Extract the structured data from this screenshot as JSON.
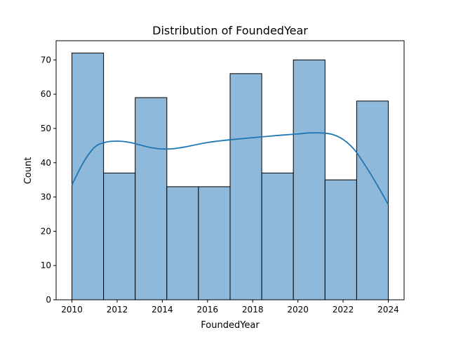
{
  "chart_data": {
    "type": "bar",
    "title": "Distribution of FoundedYear",
    "xlabel": "FoundedYear",
    "ylabel": "Count",
    "xlim": [
      2009.3,
      2024.7
    ],
    "ylim": [
      0,
      75.6
    ],
    "xticks": [
      2010,
      2012,
      2014,
      2016,
      2018,
      2020,
      2022,
      2024
    ],
    "yticks": [
      0,
      10,
      20,
      30,
      40,
      50,
      60,
      70
    ],
    "bins": [
      {
        "x0": 2010.0,
        "x1": 2011.4,
        "count": 72
      },
      {
        "x0": 2011.4,
        "x1": 2012.8,
        "count": 37
      },
      {
        "x0": 2012.8,
        "x1": 2014.2,
        "count": 59
      },
      {
        "x0": 2014.2,
        "x1": 2015.6,
        "count": 33
      },
      {
        "x0": 2015.6,
        "x1": 2017.0,
        "count": 33
      },
      {
        "x0": 2017.0,
        "x1": 2018.4,
        "count": 66
      },
      {
        "x0": 2018.4,
        "x1": 2019.8,
        "count": 37
      },
      {
        "x0": 2019.8,
        "x1": 2021.2,
        "count": 70
      },
      {
        "x0": 2021.2,
        "x1": 2022.6,
        "count": 35
      },
      {
        "x0": 2022.6,
        "x1": 2024.0,
        "count": 58
      }
    ],
    "kde": {
      "x": [
        2010.0,
        2010.5,
        2011.0,
        2011.5,
        2012.0,
        2012.5,
        2013.0,
        2013.5,
        2014.0,
        2014.5,
        2015.0,
        2016.0,
        2017.0,
        2018.0,
        2019.0,
        2020.0,
        2020.5,
        2021.0,
        2021.5,
        2022.0,
        2022.5,
        2023.0,
        2023.5,
        2024.0
      ],
      "y": [
        33.5,
        40.0,
        44.5,
        46.0,
        46.3,
        46.0,
        45.2,
        44.4,
        44.0,
        44.1,
        44.6,
        45.9,
        46.7,
        47.3,
        47.9,
        48.4,
        48.7,
        48.7,
        48.3,
        46.8,
        43.8,
        39.0,
        33.6,
        27.8
      ]
    },
    "grid": false,
    "colors": {
      "bar_fill": "#8fb9da",
      "bar_edge": "#000000",
      "kde_line": "#1f77b4",
      "axes": "#000000"
    }
  }
}
